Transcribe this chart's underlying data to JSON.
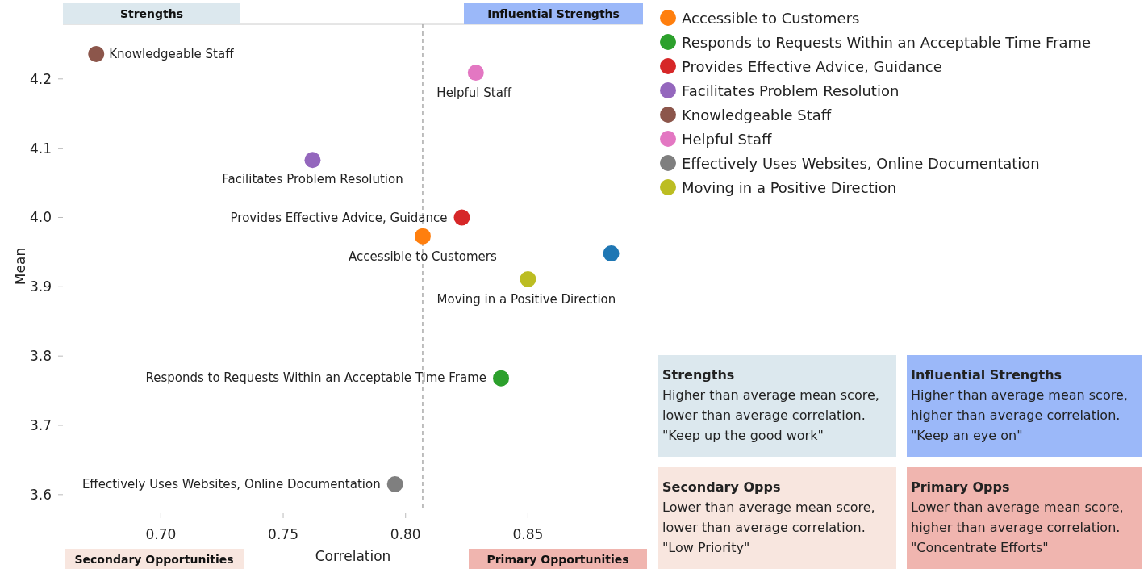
{
  "chart_data": {
    "type": "scatter",
    "xlabel": "Correlation",
    "ylabel": "Mean",
    "xlim": [
      0.66,
      0.897
    ],
    "ylim": [
      3.58,
      4.279
    ],
    "xticks": [
      {
        "value": 0.7,
        "label": "0.70"
      },
      {
        "value": 0.75,
        "label": "0.75"
      },
      {
        "value": 0.8,
        "label": "0.80"
      },
      0.85
    ],
    "yticks": [
      {
        "value": 3.6,
        "label": "3.6"
      },
      3.7,
      3.8,
      3.9,
      {
        "value": 4.0,
        "label": "4.0"
      },
      4.1,
      4.2
    ],
    "grid": false,
    "legend": "top right",
    "marker": "circle",
    "ref_lines": [
      {
        "axis": "x",
        "value": 0.807,
        "label": null,
        "color": "#aaaaaa",
        "line_style": "dashed"
      }
    ],
    "series": [
      {
        "color": "#1f77b4",
        "x": [
          0.884
        ],
        "values": [
          3.948
        ]
      },
      {
        "name": "Accessible to Customers",
        "color": "#ff7f0e",
        "x": [
          0.807
        ],
        "values": [
          3.973
        ]
      },
      {
        "name": "Responds to Requests Within an Acceptable Time Frame",
        "color": "#2ca02c",
        "x": [
          0.839
        ],
        "values": [
          3.768
        ]
      },
      {
        "name": "Provides Effective Advice, Guidance",
        "color": "#d62728",
        "x": [
          0.823
        ],
        "values": [
          4.0
        ]
      },
      {
        "name": "Facilitates Problem Resolution",
        "color": "#9467bd",
        "x": [
          0.762
        ],
        "values": [
          4.083
        ]
      },
      {
        "name": "Knowledgeable Staff",
        "color": "#8c564b",
        "x": [
          0.6736
        ],
        "values": [
          4.236
        ]
      },
      {
        "name": "Helpful Staff",
        "color": "#e377c2",
        "x": [
          0.8287
        ],
        "values": [
          4.209
        ]
      },
      {
        "name": "Effectively Uses Websites, Online Documentation",
        "color": "#7f7f7f",
        "x": [
          0.7957
        ],
        "values": [
          3.615
        ]
      },
      {
        "name": "Moving in a Positive Direction",
        "color": "#bcbd22",
        "x": [
          0.85
        ],
        "values": [
          3.911
        ]
      }
    ],
    "annotations": [
      "Strengths",
      "Influential Strengths",
      "Secondary Opportunities",
      "Primary Opportunities",
      "Strengths\nHigher than average mean score,\nlower than average correlation.\n\"Keep up the good work\"",
      "Influential Strengths\nHigher than average mean score,\nhigher than average correlation.\n\"Keep an eye on\"",
      "Secondary Opps\nLower than average mean score,\nlower than average correlation.\n\"Low Priority\"",
      "Primary Opps\nLower than average mean score,\nhigher than average correlation.\n\"Concentrate Efforts\""
    ]
  }
}
